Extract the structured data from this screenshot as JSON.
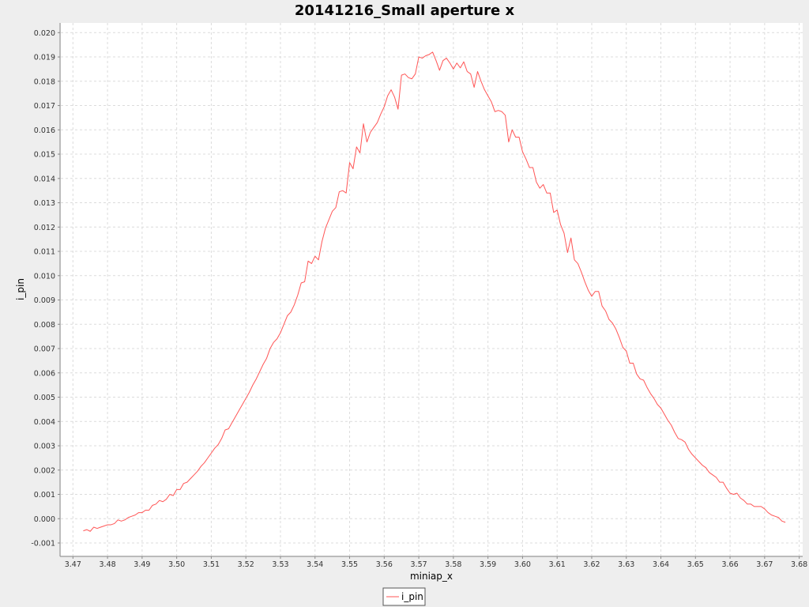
{
  "colors": {
    "page_background": "#eeeeee",
    "plot_background": "#ffffff",
    "grid": "#dcdcdc",
    "axis": "#888888",
    "series": "#ff5555"
  },
  "chart_data": {
    "type": "line",
    "title": "20141216_Small aperture x",
    "xlabel": "miniap_x",
    "ylabel": "i_pin",
    "xlim": [
      3.4665,
      3.681
    ],
    "ylim": [
      -0.00152,
      0.0204
    ],
    "x_ticks": [
      "3.47",
      "3.48",
      "3.49",
      "3.50",
      "3.51",
      "3.52",
      "3.53",
      "3.54",
      "3.55",
      "3.56",
      "3.57",
      "3.58",
      "3.59",
      "3.60",
      "3.61",
      "3.62",
      "3.63",
      "3.64",
      "3.65",
      "3.66",
      "3.67",
      "3.68"
    ],
    "y_ticks": [
      "-0.001",
      "0.000",
      "0.001",
      "0.002",
      "0.003",
      "0.004",
      "0.005",
      "0.006",
      "0.007",
      "0.008",
      "0.009",
      "0.010",
      "0.011",
      "0.012",
      "0.013",
      "0.014",
      "0.015",
      "0.016",
      "0.017",
      "0.018",
      "0.019",
      "0.020"
    ],
    "grid": true,
    "legend_position": "bottom-center",
    "series": [
      {
        "name": "i_pin",
        "color": "#ff5555",
        "points": [
          [
            3.473,
            -0.0005
          ],
          [
            3.474,
            -0.00045
          ],
          [
            3.475,
            -0.00052
          ],
          [
            3.476,
            -0.00035
          ],
          [
            3.477,
            -0.0004
          ],
          [
            3.478,
            -0.00035
          ],
          [
            3.479,
            -0.0003
          ],
          [
            3.48,
            -0.00025
          ],
          [
            3.481,
            -0.00025
          ],
          [
            3.482,
            -0.0002
          ],
          [
            3.483,
            -5e-05
          ],
          [
            3.484,
            -0.0001
          ],
          [
            3.485,
            -5e-05
          ],
          [
            3.486,
            5e-05
          ],
          [
            3.487,
            0.0001
          ],
          [
            3.488,
            0.00015
          ],
          [
            3.489,
            0.00025
          ],
          [
            3.49,
            0.00025
          ],
          [
            3.491,
            0.00035
          ],
          [
            3.492,
            0.00035
          ],
          [
            3.493,
            0.00055
          ],
          [
            3.494,
            0.0006
          ],
          [
            3.495,
            0.00075
          ],
          [
            3.496,
            0.0007
          ],
          [
            3.497,
            0.0008
          ],
          [
            3.498,
            0.001
          ],
          [
            3.499,
            0.00095
          ],
          [
            3.5,
            0.0012
          ],
          [
            3.501,
            0.0012
          ],
          [
            3.502,
            0.00145
          ],
          [
            3.503,
            0.0015
          ],
          [
            3.504,
            0.00165
          ],
          [
            3.505,
            0.0018
          ],
          [
            3.506,
            0.00195
          ],
          [
            3.507,
            0.00215
          ],
          [
            3.508,
            0.0023
          ],
          [
            3.509,
            0.0025
          ],
          [
            3.51,
            0.0027
          ],
          [
            3.511,
            0.0029
          ],
          [
            3.512,
            0.00305
          ],
          [
            3.513,
            0.0033
          ],
          [
            3.514,
            0.00365
          ],
          [
            3.515,
            0.0037
          ],
          [
            3.516,
            0.00395
          ],
          [
            3.517,
            0.0042
          ],
          [
            3.518,
            0.00445
          ],
          [
            3.519,
            0.0047
          ],
          [
            3.52,
            0.00495
          ],
          [
            3.521,
            0.0052
          ],
          [
            3.522,
            0.0055
          ],
          [
            3.523,
            0.00575
          ],
          [
            3.524,
            0.00605
          ],
          [
            3.525,
            0.00635
          ],
          [
            3.526,
            0.0066
          ],
          [
            3.527,
            0.007
          ],
          [
            3.528,
            0.00725
          ],
          [
            3.529,
            0.0074
          ],
          [
            3.53,
            0.00765
          ],
          [
            3.531,
            0.008
          ],
          [
            3.532,
            0.00835
          ],
          [
            3.533,
            0.0085
          ],
          [
            3.534,
            0.0088
          ],
          [
            3.535,
            0.0092
          ],
          [
            3.536,
            0.0097
          ],
          [
            3.537,
            0.00975
          ],
          [
            3.538,
            0.0106
          ],
          [
            3.539,
            0.0105
          ],
          [
            3.54,
            0.0108
          ],
          [
            3.541,
            0.01065
          ],
          [
            3.542,
            0.0114
          ],
          [
            3.543,
            0.01195
          ],
          [
            3.544,
            0.0123
          ],
          [
            3.545,
            0.01265
          ],
          [
            3.546,
            0.0128
          ],
          [
            3.547,
            0.01345
          ],
          [
            3.548,
            0.0135
          ],
          [
            3.549,
            0.0134
          ],
          [
            3.55,
            0.01465
          ],
          [
            3.551,
            0.0144
          ],
          [
            3.552,
            0.0153
          ],
          [
            3.553,
            0.01505
          ],
          [
            3.554,
            0.01625
          ],
          [
            3.555,
            0.0155
          ],
          [
            3.556,
            0.0159
          ],
          [
            3.557,
            0.0161
          ],
          [
            3.558,
            0.0163
          ],
          [
            3.559,
            0.01665
          ],
          [
            3.56,
            0.01695
          ],
          [
            3.561,
            0.0174
          ],
          [
            3.562,
            0.01765
          ],
          [
            3.563,
            0.01735
          ],
          [
            3.564,
            0.01685
          ],
          [
            3.565,
            0.01825
          ],
          [
            3.566,
            0.0183
          ],
          [
            3.567,
            0.01815
          ],
          [
            3.568,
            0.0181
          ],
          [
            3.569,
            0.0183
          ],
          [
            3.57,
            0.019
          ],
          [
            3.571,
            0.01895
          ],
          [
            3.572,
            0.01905
          ],
          [
            3.573,
            0.0191
          ],
          [
            3.574,
            0.0192
          ],
          [
            3.575,
            0.01885
          ],
          [
            3.576,
            0.01845
          ],
          [
            3.577,
            0.01885
          ],
          [
            3.578,
            0.01895
          ],
          [
            3.579,
            0.01875
          ],
          [
            3.58,
            0.0185
          ],
          [
            3.581,
            0.01875
          ],
          [
            3.582,
            0.01855
          ],
          [
            3.583,
            0.0188
          ],
          [
            3.584,
            0.0184
          ],
          [
            3.585,
            0.0183
          ],
          [
            3.586,
            0.01775
          ],
          [
            3.587,
            0.0184
          ],
          [
            3.588,
            0.018
          ],
          [
            3.589,
            0.01765
          ],
          [
            3.59,
            0.0174
          ],
          [
            3.591,
            0.01715
          ],
          [
            3.592,
            0.01675
          ],
          [
            3.593,
            0.0168
          ],
          [
            3.594,
            0.01675
          ],
          [
            3.595,
            0.0166
          ],
          [
            3.596,
            0.0155
          ],
          [
            3.597,
            0.016
          ],
          [
            3.598,
            0.0157
          ],
          [
            3.599,
            0.0157
          ],
          [
            3.6,
            0.0151
          ],
          [
            3.601,
            0.0148
          ],
          [
            3.602,
            0.01445
          ],
          [
            3.603,
            0.01445
          ],
          [
            3.604,
            0.01385
          ],
          [
            3.605,
            0.0136
          ],
          [
            3.606,
            0.01375
          ],
          [
            3.607,
            0.0134
          ],
          [
            3.608,
            0.0134
          ],
          [
            3.609,
            0.0126
          ],
          [
            3.61,
            0.0127
          ],
          [
            3.611,
            0.0121
          ],
          [
            3.612,
            0.01175
          ],
          [
            3.613,
            0.01095
          ],
          [
            3.614,
            0.01155
          ],
          [
            3.615,
            0.01065
          ],
          [
            3.616,
            0.0105
          ],
          [
            3.617,
            0.01015
          ],
          [
            3.618,
            0.00975
          ],
          [
            3.619,
            0.0094
          ],
          [
            3.62,
            0.00915
          ],
          [
            3.621,
            0.00935
          ],
          [
            3.622,
            0.00935
          ],
          [
            3.623,
            0.00875
          ],
          [
            3.624,
            0.00855
          ],
          [
            3.625,
            0.0082
          ],
          [
            3.626,
            0.00805
          ],
          [
            3.627,
            0.0078
          ],
          [
            3.628,
            0.00745
          ],
          [
            3.629,
            0.00705
          ],
          [
            3.63,
            0.0069
          ],
          [
            3.631,
            0.0064
          ],
          [
            3.632,
            0.0064
          ],
          [
            3.633,
            0.00595
          ],
          [
            3.634,
            0.00575
          ],
          [
            3.635,
            0.0057
          ],
          [
            3.636,
            0.0054
          ],
          [
            3.637,
            0.00515
          ],
          [
            3.638,
            0.00495
          ],
          [
            3.639,
            0.0047
          ],
          [
            3.64,
            0.00455
          ],
          [
            3.641,
            0.0043
          ],
          [
            3.642,
            0.00405
          ],
          [
            3.643,
            0.00385
          ],
          [
            3.644,
            0.00355
          ],
          [
            3.645,
            0.0033
          ],
          [
            3.646,
            0.00325
          ],
          [
            3.647,
            0.00315
          ],
          [
            3.648,
            0.00285
          ],
          [
            3.649,
            0.00265
          ],
          [
            3.65,
            0.0025
          ],
          [
            3.651,
            0.00235
          ],
          [
            3.652,
            0.0022
          ],
          [
            3.653,
            0.0021
          ],
          [
            3.654,
            0.0019
          ],
          [
            3.655,
            0.0018
          ],
          [
            3.656,
            0.0017
          ],
          [
            3.657,
            0.0015
          ],
          [
            3.658,
            0.0015
          ],
          [
            3.659,
            0.00125
          ],
          [
            3.66,
            0.00105
          ],
          [
            3.661,
            0.001
          ],
          [
            3.662,
            0.00105
          ],
          [
            3.663,
            0.00085
          ],
          [
            3.664,
            0.00075
          ],
          [
            3.665,
            0.0006
          ],
          [
            3.666,
            0.0006
          ],
          [
            3.667,
            0.0005
          ],
          [
            3.668,
            0.0005
          ],
          [
            3.669,
            0.0005
          ],
          [
            3.67,
            0.0004
          ],
          [
            3.671,
            0.00025
          ],
          [
            3.672,
            0.00015
          ],
          [
            3.673,
            0.0001
          ],
          [
            3.674,
            5e-05
          ],
          [
            3.675,
            -0.0001
          ],
          [
            3.676,
            -0.00015
          ]
        ]
      }
    ]
  }
}
